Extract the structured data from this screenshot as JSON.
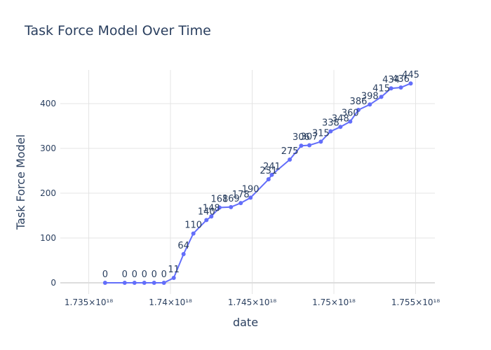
{
  "chart_data": {
    "type": "line",
    "title": "Task Force Model Over Time",
    "xlabel": "date",
    "ylabel": "Task Force Model",
    "x_tick_values": [
      1.735e+18,
      1.74e+18,
      1.745e+18,
      1.75e+18,
      1.755e+18
    ],
    "x_tick_labels": [
      "1.735×10¹⁸",
      "1.74×10¹⁸",
      "1.745×10¹⁸",
      "1.75×10¹⁸",
      "1.755×10¹⁸"
    ],
    "y_tick_values": [
      0,
      100,
      200,
      300,
      400
    ],
    "y_tick_labels": [
      "0",
      "100",
      "200",
      "300",
      "400"
    ],
    "xlim": [
      1.73326e+18,
      1.75618e+18
    ],
    "ylim": [
      -25,
      475
    ],
    "grid": true,
    "series": [
      {
        "color": "#636efa",
        "x": [
          1.736e+18,
          1.7372e+18,
          1.7378e+18,
          1.7384e+18,
          1.739e+18,
          1.7396e+18,
          1.7402e+18,
          1.7408e+18,
          1.7414e+18,
          1.7422e+18,
          1.7425e+18,
          1.743e+18,
          1.7437e+18,
          1.7443e+18,
          1.7449e+18,
          1.746e+18,
          1.7462e+18,
          1.7473e+18,
          1.748e+18,
          1.7485e+18,
          1.7492e+18,
          1.7498e+18,
          1.7504e+18,
          1.751e+18,
          1.7515e+18,
          1.7522e+18,
          1.7529e+18,
          1.7535e+18,
          1.7541e+18,
          1.7547e+18
        ],
        "y": [
          0,
          0,
          0,
          0,
          0,
          0,
          11,
          64,
          110,
          140,
          148,
          168,
          169,
          178,
          190,
          231,
          241,
          275,
          306,
          307,
          315,
          338,
          348,
          360,
          386,
          398,
          415,
          434,
          436,
          445
        ],
        "labels": [
          "0",
          "0",
          "0",
          "0",
          "0",
          "0",
          "11",
          "64",
          "110",
          "140",
          "148",
          "168",
          "169",
          "178",
          "190",
          "231",
          "241",
          "275",
          "306",
          "307",
          "315",
          "338",
          "348",
          "360",
          "386",
          "398",
          "415",
          "434",
          "436",
          "445"
        ]
      }
    ]
  }
}
